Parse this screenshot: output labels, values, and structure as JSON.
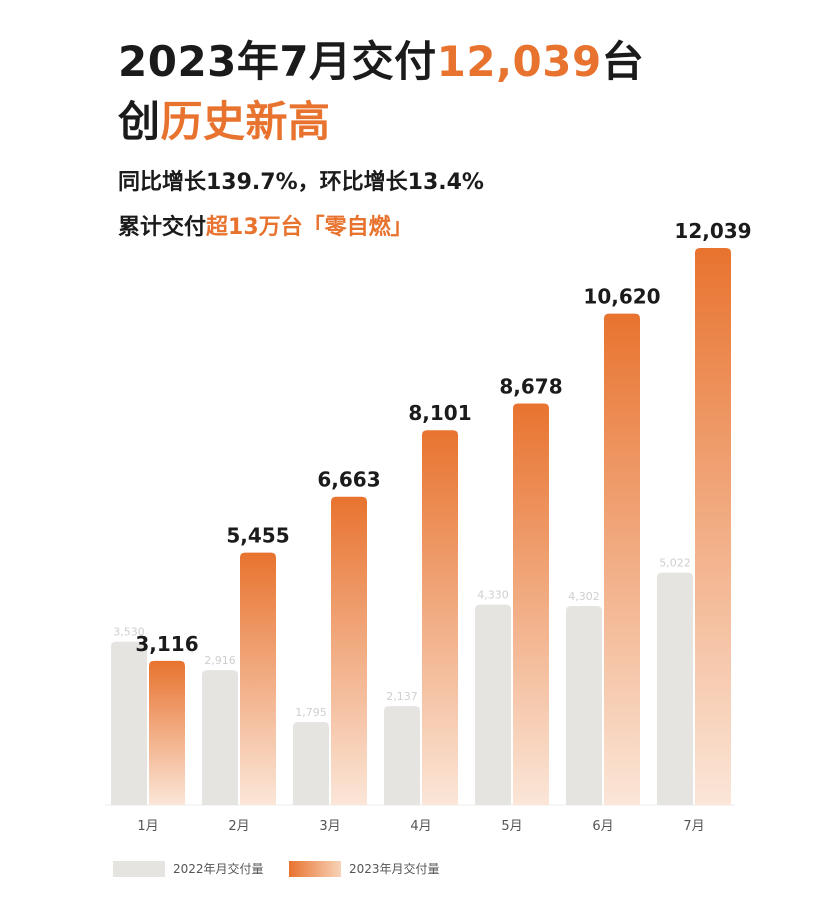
{
  "headline": {
    "line1_prefix": "2023年7月交付",
    "line1_highlight": "12,039",
    "line1_suffix": "台",
    "line2_prefix": "创",
    "line2_highlight": "历史新高"
  },
  "subline1": "同比增长139.7%，环比增长13.4%",
  "subline2": {
    "prefix": "累计交付",
    "highlight": "超13万台「零自燃」"
  },
  "colors": {
    "accent": "#e8732f",
    "bar_2022": "#e6e4e0",
    "bar_2023_top": "#e8732f",
    "bar_2023_bottom": "#fbe6d8"
  },
  "chart_data": {
    "type": "bar",
    "categories": [
      "1月",
      "2月",
      "3月",
      "4月",
      "5月",
      "6月",
      "7月"
    ],
    "series": [
      {
        "name": "2022年月交付量",
        "values": [
          3530,
          2916,
          1795,
          2137,
          4330,
          4302,
          5022
        ]
      },
      {
        "name": "2023年月交付量",
        "values": [
          3116,
          5455,
          6663,
          8101,
          8678,
          10620,
          12039
        ]
      }
    ],
    "labels_2022": [
      "3,530",
      "2,916",
      "1,795",
      "2,137",
      "4,330",
      "4,302",
      "5,022"
    ],
    "labels_2023": [
      "3,116",
      "5,455",
      "6,663",
      "8,101",
      "8,678",
      "10,620",
      "12,039"
    ],
    "ylim": [
      0,
      12039
    ],
    "legend_position": "bottom-left",
    "grid": false
  }
}
